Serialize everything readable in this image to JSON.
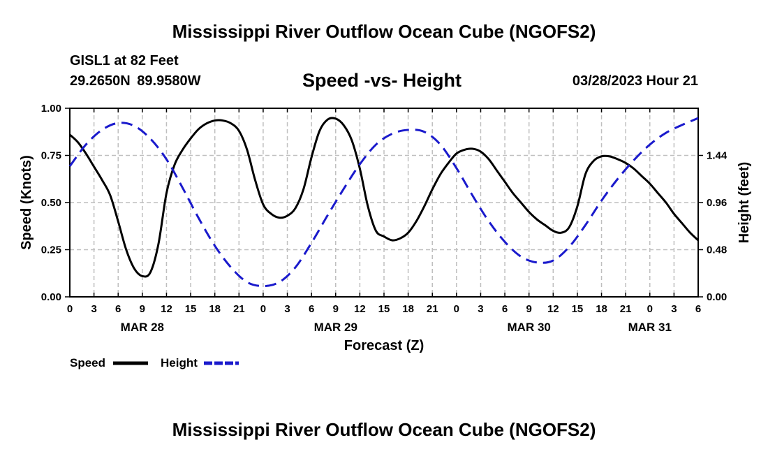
{
  "header": {
    "title": "Mississippi River Outflow Ocean Cube (NGOFS2)",
    "station": "GISL1 at 82 Feet",
    "coords": "29.2650N  89.9580W",
    "subtitle": "Speed -vs- Height",
    "datetime": "03/28/2023 Hour 21"
  },
  "footer": {
    "title": "Mississippi River Outflow Ocean Cube (NGOFS2)"
  },
  "colors": {
    "speed": "#000000",
    "height": "#1a1acc",
    "grid": "#bfbfbf"
  },
  "chart_data": {
    "type": "line",
    "title": "Speed -vs- Height",
    "xlabel": "Forecast (Z)",
    "ylabel": "Speed (Knots)",
    "y2label": "Height (feet)",
    "xlim": [
      0,
      78
    ],
    "ylim": [
      0,
      1.0
    ],
    "y2lim": [
      0,
      1.92
    ],
    "grid": true,
    "x_ticks": [
      0,
      3,
      6,
      9,
      12,
      15,
      18,
      21,
      24,
      27,
      30,
      33,
      36,
      39,
      42,
      45,
      48,
      51,
      54,
      57,
      60,
      63,
      66,
      69,
      72,
      75,
      78
    ],
    "x_tick_labels": [
      "0",
      "3",
      "6",
      "9",
      "12",
      "15",
      "18",
      "21",
      "0",
      "3",
      "6",
      "9",
      "12",
      "15",
      "18",
      "21",
      "0",
      "3",
      "6",
      "9",
      "12",
      "15",
      "18",
      "21",
      "0",
      "3",
      "6"
    ],
    "y_ticks": [
      0,
      0.25,
      0.5,
      0.75,
      1.0
    ],
    "y_tick_labels": [
      "0.00",
      "0.25",
      "0.50",
      "0.75",
      "1.00"
    ],
    "y2_ticks": [
      0,
      0.48,
      0.96,
      1.44
    ],
    "y2_tick_labels": [
      "0.00",
      "0.48",
      "0.96",
      "1.44"
    ],
    "date_labels": [
      {
        "x": 9,
        "label": "MAR 28"
      },
      {
        "x": 33,
        "label": "MAR 29"
      },
      {
        "x": 57,
        "label": "MAR 30"
      },
      {
        "x": 72,
        "label": "MAR 31"
      }
    ],
    "legend": [
      {
        "name": "Speed",
        "style": "solid"
      },
      {
        "name": "Height",
        "style": "dashed"
      }
    ],
    "series": [
      {
        "name": "Speed",
        "axis": "left",
        "x": [
          0,
          1,
          2,
          3,
          4,
          5,
          6,
          7,
          8,
          9,
          10,
          11,
          12,
          13,
          14,
          15,
          16,
          17,
          18,
          19,
          20,
          21,
          22,
          23,
          24,
          25,
          26,
          27,
          28,
          29,
          30,
          31,
          32,
          33,
          34,
          35,
          36,
          37,
          38,
          39,
          40,
          41,
          42,
          43,
          44,
          45,
          46,
          47,
          48,
          49,
          50,
          51,
          52,
          53,
          54,
          55,
          56,
          57,
          58,
          59,
          60,
          61,
          62,
          63,
          64,
          65,
          66,
          67,
          68,
          69,
          70,
          71,
          72,
          73,
          74,
          75,
          76,
          77,
          78
        ],
        "values": [
          0.86,
          0.82,
          0.76,
          0.69,
          0.62,
          0.54,
          0.4,
          0.25,
          0.15,
          0.11,
          0.13,
          0.28,
          0.55,
          0.7,
          0.78,
          0.84,
          0.89,
          0.92,
          0.935,
          0.935,
          0.92,
          0.88,
          0.78,
          0.62,
          0.49,
          0.44,
          0.42,
          0.43,
          0.47,
          0.57,
          0.74,
          0.88,
          0.94,
          0.945,
          0.91,
          0.83,
          0.68,
          0.48,
          0.35,
          0.32,
          0.3,
          0.31,
          0.34,
          0.4,
          0.48,
          0.57,
          0.65,
          0.71,
          0.76,
          0.78,
          0.785,
          0.77,
          0.73,
          0.67,
          0.61,
          0.55,
          0.5,
          0.45,
          0.41,
          0.38,
          0.35,
          0.34,
          0.37,
          0.48,
          0.65,
          0.72,
          0.745,
          0.745,
          0.73,
          0.71,
          0.68,
          0.64,
          0.6,
          0.55,
          0.5,
          0.44,
          0.39,
          0.34,
          0.3
        ]
      },
      {
        "name": "Height",
        "axis": "right",
        "x": [
          0,
          2,
          4,
          6,
          8,
          10,
          12,
          14,
          16,
          18,
          20,
          22,
          24,
          26,
          28,
          30,
          32,
          34,
          36,
          38,
          40,
          42,
          44,
          46,
          48,
          50,
          52,
          54,
          56,
          58,
          60,
          62,
          64,
          66,
          68,
          70,
          72,
          74,
          76,
          78
        ],
        "values": [
          1.33,
          1.55,
          1.7,
          1.77,
          1.74,
          1.61,
          1.4,
          1.11,
          0.8,
          0.52,
          0.3,
          0.15,
          0.11,
          0.15,
          0.3,
          0.55,
          0.83,
          1.1,
          1.35,
          1.55,
          1.66,
          1.7,
          1.68,
          1.55,
          1.31,
          1.03,
          0.77,
          0.56,
          0.41,
          0.35,
          0.37,
          0.51,
          0.73,
          0.98,
          1.2,
          1.39,
          1.55,
          1.67,
          1.75,
          1.82
        ]
      }
    ]
  }
}
